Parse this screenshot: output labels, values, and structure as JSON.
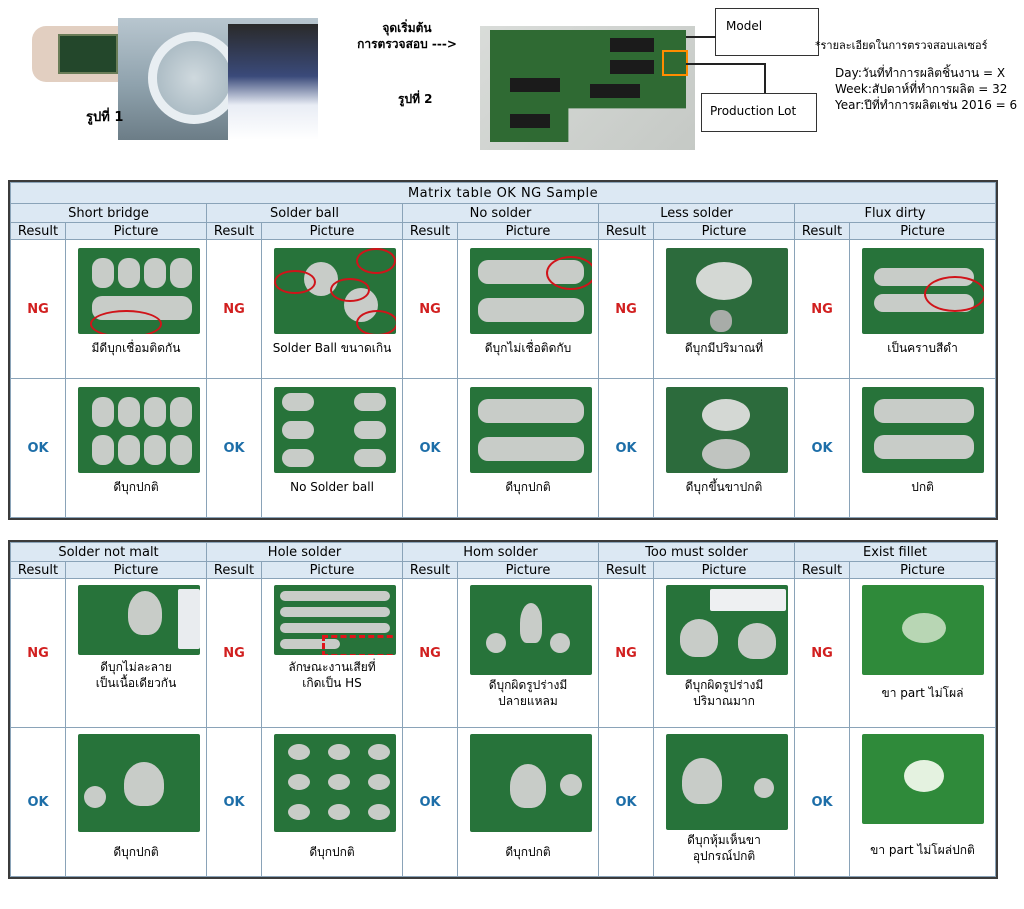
{
  "header": {
    "photo1_caption": "รูปที่ 1",
    "start_label_line1": "จุดเริ่มต้น",
    "start_label_line2": "การตรวจสอบ --->",
    "photo2_caption": "รูปที่ 2",
    "callout_model": "Model",
    "callout_lot": "Production Lot",
    "laser_note": "*รายละเอียดในการตรวจสอบเลเซอร์",
    "defs": [
      "Day:วันที่ทำการผลิตชิ้นงาน = X",
      "Week:สัปดาห์ที่ทำการผลิต = 32",
      "Year:ปีที่ทำการผลิตเช่น 2016 = 6"
    ]
  },
  "table1": {
    "title": "Matrix  table OK NG Sample",
    "result_header": "Result",
    "picture_header": "Picture",
    "columns": [
      {
        "name": "Short bridge",
        "ng_result": "NG",
        "ng_caption": "มีดีบุกเชื่อมติดกัน",
        "ok_result": "OK",
        "ok_caption": "ดีบุกปกติ"
      },
      {
        "name": "Solder ball",
        "ng_result": "NG",
        "ng_caption": "Solder Ball ขนาดเกิน",
        "ok_result": "OK",
        "ok_caption": "No Solder ball"
      },
      {
        "name": "No solder",
        "ng_result": "NG",
        "ng_caption": "ดีบุกไม่เชื่อติดกับ",
        "ok_result": "OK",
        "ok_caption": "ดีบุกปกติ"
      },
      {
        "name": "Less solder",
        "ng_result": "NG",
        "ng_caption": "ดีบุกมีปริมาณที่",
        "ok_result": "OK",
        "ok_caption": "ดีบุกขึ้นขาปกติ"
      },
      {
        "name": "Flux dirty",
        "ng_result": "NG",
        "ng_caption": "เป็นคราบสีดำ",
        "ok_result": "OK",
        "ok_caption": "ปกติ"
      }
    ]
  },
  "table2": {
    "result_header": "Result",
    "picture_header": "Picture",
    "columns": [
      {
        "name": "Solder not malt",
        "ng_result": "NG",
        "ng_caption": "ดีบุกไม่ละลาย\nเป็นเนื้อเดียวกัน",
        "ok_result": "OK",
        "ok_caption": "ดีบุกปกติ"
      },
      {
        "name": "Hole solder",
        "ng_result": "NG",
        "ng_caption": "ลักษณะงานเสียที่\nเกิดเป็น  HS",
        "ok_result": "OK",
        "ok_caption": "ดีบุกปกติ"
      },
      {
        "name": "Hom solder",
        "ng_result": "NG",
        "ng_caption": "ดีบุกผิดรูปร่างมี\nปลายแหลม",
        "ok_result": "OK",
        "ok_caption": "ดีบุกปกติ"
      },
      {
        "name": "Too must solder",
        "ng_result": "NG",
        "ng_caption": "ดีบุกผิดรูปร่างมี\nปริมาณมาก",
        "ok_result": "OK",
        "ok_caption": "ดีบุกหุ้มเห็นขา\nอุปกรณ์ปกติ"
      },
      {
        "name": "Exist fillet",
        "ng_result": "NG",
        "ng_caption": "ขา part ไม่โผล่",
        "ok_result": "OK",
        "ok_caption": "ขา part ไม่โผล่ปกติ"
      }
    ]
  },
  "colors": {
    "ng": "#d11f1f",
    "ok": "#1d6ea8",
    "header_fill": "#dce8f3",
    "pcb_green": "#27733a",
    "highlight": "#ff8c00"
  }
}
